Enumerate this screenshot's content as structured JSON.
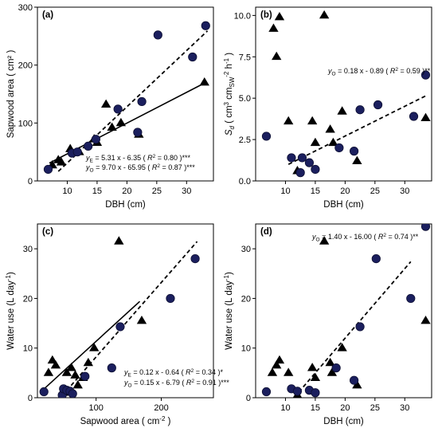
{
  "chart_data": [
    {
      "type": "scatter",
      "panel_label": "(a)",
      "xlabel": "DBH (cm)",
      "ylabel": "Sapwood area ( cm² )",
      "xlim": [
        5,
        34.5
      ],
      "ylim": [
        0,
        300
      ],
      "xticks": [
        10,
        15,
        20,
        25,
        30
      ],
      "yticks": [
        0,
        100,
        200,
        300
      ],
      "series": [
        {
          "marker": "triangle",
          "points": [
            [
              7.5,
              27
            ],
            [
              8.5,
              36
            ],
            [
              9,
              32
            ],
            [
              10.5,
              55
            ],
            [
              12,
              50
            ],
            [
              14.5,
              72
            ],
            [
              15,
              66
            ],
            [
              16.5,
              132
            ],
            [
              17.5,
              92
            ],
            [
              19,
              100
            ],
            [
              22,
              80
            ],
            [
              33,
              170
            ]
          ]
        },
        {
          "marker": "circle",
          "points": [
            [
              6.8,
              20
            ],
            [
              10.8,
              48
            ],
            [
              11.7,
              50
            ],
            [
              13.5,
              60
            ],
            [
              14.8,
              72
            ],
            [
              18.5,
              124
            ],
            [
              21.8,
              84
            ],
            [
              22.5,
              137
            ],
            [
              25.2,
              252
            ],
            [
              31,
              214
            ],
            [
              33.2,
              268
            ]
          ]
        }
      ],
      "fits": [
        {
          "style": "solid",
          "slope": 5.31,
          "intercept": -6.35,
          "x_range": [
            7,
            33
          ]
        },
        {
          "style": "dashed",
          "slope": 9.7,
          "intercept": -65.95,
          "x_range": [
            8.5,
            33.5
          ]
        }
      ],
      "annotations": [
        {
          "var": "y",
          "sub": "E",
          "text": " = 5.31 x - 6.35 ( ",
          "r2": "R",
          "rest": " = 0.80 )***"
        },
        {
          "var": "y",
          "sub": "O",
          "text": " = 9.70 x - 65.95 ( ",
          "r2": "R",
          "rest": " = 0.87 )***"
        }
      ]
    },
    {
      "type": "scatter",
      "panel_label": "(b)",
      "xlabel": "DBH (cm)",
      "ylabel": "Sₐ ( cm³ cm⁻² h⁻¹ )",
      "ylabel_parts": {
        "main": "S",
        "sub_main": "d",
        "unit_open": " ( cm",
        "sup1": "3",
        "unit_mid": " cm",
        "sub_sw": "SW",
        "sup2": "-2",
        "unit_h": " h",
        "sup3": "-1",
        "unit_close": " )"
      },
      "xlim": [
        5,
        34.5
      ],
      "ylim": [
        0,
        10.5
      ],
      "xticks": [
        10,
        15,
        20,
        25,
        30
      ],
      "yticks": [
        0.0,
        2.5,
        5.0,
        7.5,
        10.0
      ],
      "ytick_labels": [
        "0.0",
        "2.5",
        "5.0",
        "7.5",
        "10.0"
      ],
      "series": [
        {
          "marker": "triangle",
          "points": [
            [
              8,
              9.2
            ],
            [
              8.5,
              7.5
            ],
            [
              9,
              9.9
            ],
            [
              10.5,
              3.6
            ],
            [
              12,
              0.6
            ],
            [
              14.5,
              3.6
            ],
            [
              15,
              2.3
            ],
            [
              16.5,
              10.0
            ],
            [
              17.5,
              3.1
            ],
            [
              18,
              2.3
            ],
            [
              19.5,
              4.2
            ],
            [
              22,
              1.2
            ],
            [
              33.5,
              3.8
            ]
          ]
        },
        {
          "marker": "circle",
          "points": [
            [
              6.8,
              2.7
            ],
            [
              11,
              1.4
            ],
            [
              12.5,
              0.5
            ],
            [
              12.8,
              1.4
            ],
            [
              14,
              1.1
            ],
            [
              15,
              0.7
            ],
            [
              19,
              2.0
            ],
            [
              21.5,
              1.8
            ],
            [
              22.5,
              4.3
            ],
            [
              25.5,
              4.6
            ],
            [
              31.5,
              3.9
            ],
            [
              33.5,
              6.4
            ]
          ]
        }
      ],
      "fits": [
        {
          "style": "dashed",
          "slope": 0.18,
          "intercept": -0.89,
          "x_range": [
            10.5,
            33.5
          ]
        }
      ],
      "annotations": [
        {
          "var": "y",
          "sub": "O",
          "text": " = 0.18 x - 0.89 ( ",
          "r2": "R",
          "rest": " = 0.59 )**"
        }
      ]
    },
    {
      "type": "scatter",
      "panel_label": "(c)",
      "xlabel": "Sapwood area ( cm⁻² )",
      "xlabel_parts": {
        "main": "Sapwood area ( cm",
        "sup": "-2",
        "close": " )"
      },
      "ylabel": "Water use (L day⁻¹)",
      "ylabel_parts": {
        "main": "Water use (L day",
        "sup": "-1",
        "close": ")"
      },
      "xlim": [
        10,
        280
      ],
      "ylim": [
        0,
        35
      ],
      "xticks": [
        100,
        200
      ],
      "yticks": [
        0,
        10,
        20,
        30
      ],
      "series": [
        {
          "marker": "triangle",
          "points": [
            [
              27,
              5
            ],
            [
              33,
              7.5
            ],
            [
              38,
              6.5
            ],
            [
              50,
              1
            ],
            [
              55,
              5
            ],
            [
              62,
              6
            ],
            [
              68,
              4.5
            ],
            [
              72,
              2.5
            ],
            [
              80,
              4
            ],
            [
              88,
              7
            ],
            [
              97,
              10
            ],
            [
              135,
              31.5
            ],
            [
              170,
              15.5
            ]
          ]
        },
        {
          "marker": "circle",
          "points": [
            [
              20,
              1.2
            ],
            [
              48,
              0.5
            ],
            [
              50,
              1.8
            ],
            [
              55,
              1.5
            ],
            [
              60,
              1.3
            ],
            [
              64,
              0.8
            ],
            [
              83,
              4.3
            ],
            [
              124,
              6
            ],
            [
              137,
              14.3
            ],
            [
              214,
              20
            ],
            [
              252,
              28
            ]
          ]
        }
      ],
      "fits": [
        {
          "style": "solid",
          "slope": 0.12,
          "intercept": -0.64,
          "x_range": [
            22,
            167
          ]
        },
        {
          "style": "dashed",
          "slope": 0.15,
          "intercept": -6.79,
          "x_range": [
            48,
            255
          ]
        }
      ],
      "annotations": [
        {
          "var": "y",
          "sub": "E",
          "text": " = 0.12 x - 0.64 ( ",
          "r2": "R",
          "rest": " = 0.34 )*"
        },
        {
          "var": "y",
          "sub": "O",
          "text": " = 0.15 x - 6.79 ( ",
          "r2": "R",
          "rest": " = 0.91 )***"
        }
      ]
    },
    {
      "type": "scatter",
      "panel_label": "(d)",
      "xlabel": "DBH (cm)",
      "ylabel": "Water use (L day⁻¹)",
      "ylabel_parts": {
        "main": "Water use (L day",
        "sup": "-1",
        "close": ")"
      },
      "xlim": [
        5,
        34.5
      ],
      "ylim": [
        0,
        35
      ],
      "xticks": [
        10,
        15,
        20,
        25,
        30
      ],
      "yticks": [
        0,
        10,
        20,
        30
      ],
      "series": [
        {
          "marker": "triangle",
          "points": [
            [
              7.8,
              5
            ],
            [
              8.5,
              6.5
            ],
            [
              9,
              7.5
            ],
            [
              10.5,
              5
            ],
            [
              12,
              0.5
            ],
            [
              14.5,
              6
            ],
            [
              15,
              4
            ],
            [
              16.5,
              31.5
            ],
            [
              17.5,
              7
            ],
            [
              17.8,
              5
            ],
            [
              19.5,
              10
            ],
            [
              22,
              2.5
            ],
            [
              33.5,
              15.5
            ]
          ]
        },
        {
          "marker": "circle",
          "points": [
            [
              6.8,
              1.2
            ],
            [
              11,
              1.8
            ],
            [
              12,
              1.3
            ],
            [
              14,
              1.5
            ],
            [
              15,
              1.0
            ],
            [
              18.5,
              6
            ],
            [
              21.5,
              3.5
            ],
            [
              22.5,
              14.3
            ],
            [
              25.2,
              28
            ],
            [
              31,
              20
            ],
            [
              33.5,
              34.5
            ]
          ]
        }
      ],
      "fits": [
        {
          "style": "dashed",
          "slope": 1.4,
          "intercept": -16.0,
          "x_range": [
            11.5,
            31
          ]
        }
      ],
      "annotations": [
        {
          "var": "y",
          "sub": "O",
          "text": " = 1.40 x - 16.00 ( ",
          "r2": "R",
          "rest": " = 0.74 )**"
        }
      ]
    }
  ]
}
